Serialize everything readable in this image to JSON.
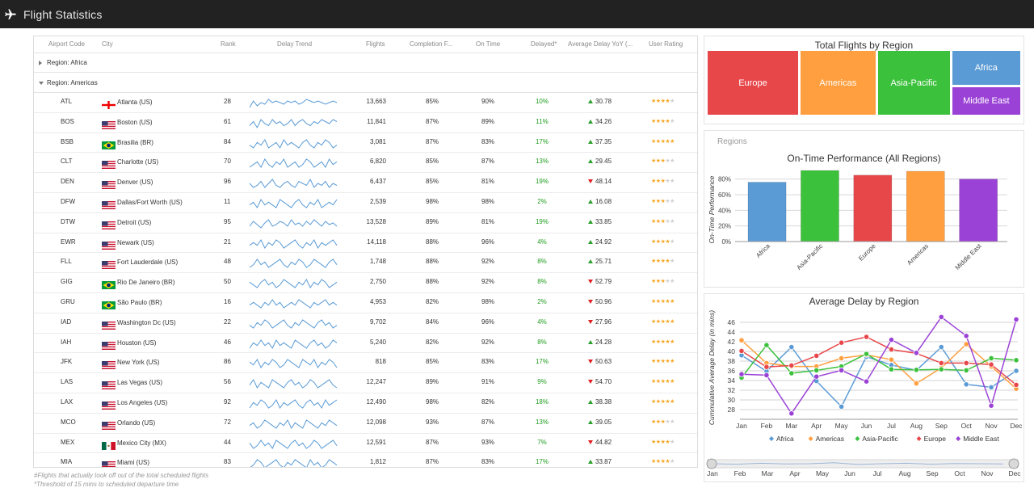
{
  "app": {
    "title": "Flight Statistics",
    "icon": "airplane-icon"
  },
  "grid": {
    "headers": {
      "airport_code": "Airport Code",
      "city": "City",
      "rank": "Rank",
      "delay_trend": "Delay Trend",
      "flights": "Flights",
      "completion": "Completion F...",
      "on_time": "On Time",
      "delayed": "Delayed*",
      "avg_delay_yoy": "Average Delay YoY (...",
      "user_rating": "User Rating"
    },
    "groups": [
      {
        "label": "Region: Africa",
        "expanded": false
      },
      {
        "label": "Region: Americas",
        "expanded": true
      }
    ],
    "rows": [
      {
        "code": "ATL",
        "flag": "ge",
        "city": "Atlanta (US)",
        "rank": "28",
        "trend": [
          5,
          9,
          6,
          8,
          7,
          10,
          8,
          9,
          8,
          7,
          9,
          8,
          9,
          7,
          8,
          10,
          9,
          8,
          9,
          8,
          7,
          8,
          9,
          8
        ],
        "flights": "13,663",
        "completion": "85%",
        "on_time": "90%",
        "delayed": "10%",
        "yoy_dir": "up",
        "yoy": "30.78",
        "rating": 4
      },
      {
        "code": "BOS",
        "flag": "us",
        "city": "Boston (US)",
        "rank": "61",
        "trend": [
          6,
          8,
          5,
          9,
          7,
          6,
          9,
          7,
          8,
          6,
          7,
          9,
          6,
          8,
          9,
          7,
          6,
          8,
          7,
          9,
          8,
          7,
          9,
          8
        ],
        "flights": "11,841",
        "completion": "87%",
        "on_time": "89%",
        "delayed": "11%",
        "yoy_dir": "up",
        "yoy": "34.26",
        "rating": 4
      },
      {
        "code": "BSB",
        "flag": "br",
        "city": "Brasilia (BR)",
        "rank": "84",
        "trend": [
          7,
          6,
          8,
          7,
          9,
          6,
          7,
          8,
          6,
          9,
          7,
          8,
          7,
          6,
          8,
          9,
          7,
          6,
          8,
          7,
          9,
          8,
          6,
          7
        ],
        "flights": "3,081",
        "completion": "87%",
        "on_time": "83%",
        "delayed": "17%",
        "yoy_dir": "up",
        "yoy": "37.35",
        "rating": 5
      },
      {
        "code": "CLT",
        "flag": "us",
        "city": "Charlotte (US)",
        "rank": "70",
        "trend": [
          6,
          7,
          8,
          6,
          9,
          7,
          6,
          8,
          7,
          9,
          6,
          7,
          8,
          6,
          7,
          9,
          8,
          6,
          7,
          8,
          6,
          9,
          7,
          8
        ],
        "flights": "6,820",
        "completion": "85%",
        "on_time": "87%",
        "delayed": "13%",
        "yoy_dir": "up",
        "yoy": "29.45",
        "rating": 3
      },
      {
        "code": "DEN",
        "flag": "us",
        "city": "Denver (US)",
        "rank": "96",
        "trend": [
          8,
          6,
          7,
          9,
          6,
          8,
          10,
          7,
          6,
          8,
          9,
          7,
          6,
          9,
          8,
          7,
          10,
          6,
          8,
          7,
          9,
          6,
          8,
          7
        ],
        "flights": "6,437",
        "completion": "85%",
        "on_time": "81%",
        "delayed": "19%",
        "yoy_dir": "down",
        "yoy": "48.14",
        "rating": 3
      },
      {
        "code": "DFW",
        "flag": "us",
        "city": "Dallas/Fort Worth (US)",
        "rank": "11",
        "trend": [
          7,
          8,
          6,
          9,
          7,
          8,
          7,
          6,
          9,
          8,
          7,
          6,
          8,
          9,
          7,
          6,
          8,
          7,
          9,
          6,
          7,
          8,
          7,
          9
        ],
        "flights": "2,539",
        "completion": "98%",
        "on_time": "98%",
        "delayed": "2%",
        "yoy_dir": "up",
        "yoy": "16.08",
        "rating": 3
      },
      {
        "code": "DTW",
        "flag": "us",
        "city": "Detroit (US)",
        "rank": "95",
        "trend": [
          6,
          9,
          7,
          5,
          8,
          10,
          6,
          7,
          9,
          8,
          6,
          10,
          7,
          8,
          6,
          9,
          7,
          10,
          8,
          6,
          9,
          7,
          8,
          6
        ],
        "flights": "13,528",
        "completion": "89%",
        "on_time": "81%",
        "delayed": "19%",
        "yoy_dir": "up",
        "yoy": "33.85",
        "rating": 3
      },
      {
        "code": "EWR",
        "flag": "us",
        "city": "Newark (US)",
        "rank": "21",
        "trend": [
          7,
          8,
          7,
          9,
          6,
          8,
          7,
          9,
          8,
          6,
          7,
          8,
          9,
          7,
          6,
          8,
          7,
          9,
          6,
          8,
          7,
          8,
          9,
          7
        ],
        "flights": "14,118",
        "completion": "88%",
        "on_time": "96%",
        "delayed": "4%",
        "yoy_dir": "up",
        "yoy": "24.92",
        "rating": 4
      },
      {
        "code": "FLL",
        "flag": "us",
        "city": "Fort Lauderdale (US)",
        "rank": "48",
        "trend": [
          6,
          7,
          9,
          7,
          8,
          6,
          7,
          8,
          9,
          7,
          6,
          8,
          7,
          9,
          8,
          6,
          7,
          9,
          8,
          7,
          6,
          8,
          9,
          7
        ],
        "flights": "1,748",
        "completion": "88%",
        "on_time": "92%",
        "delayed": "8%",
        "yoy_dir": "up",
        "yoy": "25.71",
        "rating": 4
      },
      {
        "code": "GIG",
        "flag": "br",
        "city": "Rio De Janeiro (BR)",
        "rank": "50",
        "trend": [
          8,
          7,
          6,
          8,
          9,
          7,
          8,
          6,
          7,
          9,
          8,
          7,
          6,
          8,
          7,
          9,
          6,
          8,
          7,
          9,
          8,
          6,
          7,
          8
        ],
        "flights": "2,750",
        "completion": "88%",
        "on_time": "92%",
        "delayed": "8%",
        "yoy_dir": "down",
        "yoy": "52.79",
        "rating": 3
      },
      {
        "code": "GRU",
        "flag": "br",
        "city": "São Paulo (BR)",
        "rank": "16",
        "trend": [
          7,
          8,
          7,
          6,
          8,
          7,
          9,
          7,
          8,
          6,
          7,
          8,
          7,
          9,
          8,
          7,
          6,
          8,
          7,
          8,
          9,
          7,
          8,
          7
        ],
        "flights": "4,953",
        "completion": "82%",
        "on_time": "98%",
        "delayed": "2%",
        "yoy_dir": "down",
        "yoy": "50.96",
        "rating": 5
      },
      {
        "code": "IAD",
        "flag": "us",
        "city": "Washington Dc (US)",
        "rank": "22",
        "trend": [
          7,
          6,
          8,
          7,
          9,
          8,
          6,
          7,
          8,
          9,
          7,
          6,
          8,
          7,
          9,
          8,
          7,
          6,
          8,
          9,
          7,
          8,
          6,
          7
        ],
        "flights": "9,702",
        "completion": "84%",
        "on_time": "96%",
        "delayed": "4%",
        "yoy_dir": "down",
        "yoy": "27.96",
        "rating": 5
      },
      {
        "code": "IAH",
        "flag": "us",
        "city": "Houston (US)",
        "rank": "46",
        "trend": [
          6,
          8,
          7,
          9,
          7,
          8,
          6,
          9,
          7,
          8,
          7,
          6,
          9,
          8,
          7,
          6,
          8,
          9,
          7,
          8,
          6,
          7,
          9,
          8
        ],
        "flights": "5,240",
        "completion": "82%",
        "on_time": "92%",
        "delayed": "8%",
        "yoy_dir": "up",
        "yoy": "24.28",
        "rating": 5
      },
      {
        "code": "JFK",
        "flag": "us",
        "city": "New York (US)",
        "rank": "86",
        "trend": [
          8,
          7,
          9,
          6,
          8,
          7,
          9,
          8,
          6,
          7,
          9,
          8,
          7,
          6,
          9,
          8,
          7,
          9,
          6,
          8,
          7,
          9,
          8,
          6
        ],
        "flights": "818",
        "completion": "85%",
        "on_time": "83%",
        "delayed": "17%",
        "yoy_dir": "down",
        "yoy": "50.63",
        "rating": 5
      },
      {
        "code": "LAS",
        "flag": "us",
        "city": "Las Vegas (US)",
        "rank": "56",
        "trend": [
          7,
          9,
          6,
          8,
          7,
          6,
          9,
          8,
          7,
          6,
          8,
          9,
          7,
          8,
          6,
          7,
          9,
          8,
          6,
          7,
          8,
          9,
          7,
          6
        ],
        "flights": "12,247",
        "completion": "89%",
        "on_time": "91%",
        "delayed": "9%",
        "yoy_dir": "down",
        "yoy": "54.70",
        "rating": 5
      },
      {
        "code": "LAX",
        "flag": "us",
        "city": "Los Angeles (US)",
        "rank": "92",
        "trend": [
          6,
          8,
          7,
          9,
          8,
          6,
          7,
          9,
          6,
          8,
          7,
          8,
          9,
          7,
          6,
          8,
          9,
          7,
          8,
          6,
          9,
          7,
          8,
          9
        ],
        "flights": "12,490",
        "completion": "98%",
        "on_time": "82%",
        "delayed": "18%",
        "yoy_dir": "up",
        "yoy": "38.38",
        "rating": 5
      },
      {
        "code": "MCO",
        "flag": "us",
        "city": "Orlando (US)",
        "rank": "72",
        "trend": [
          7,
          8,
          6,
          7,
          9,
          8,
          7,
          6,
          8,
          7,
          9,
          6,
          8,
          7,
          6,
          9,
          8,
          7,
          6,
          8,
          7,
          9,
          8,
          7
        ],
        "flights": "12,098",
        "completion": "93%",
        "on_time": "87%",
        "delayed": "13%",
        "yoy_dir": "up",
        "yoy": "39.05",
        "rating": 3
      },
      {
        "code": "MEX",
        "flag": "mx",
        "city": "Mexico City (MX)",
        "rank": "44",
        "trend": [
          8,
          6,
          7,
          9,
          7,
          8,
          6,
          9,
          8,
          7,
          6,
          8,
          9,
          7,
          8,
          6,
          7,
          9,
          8,
          6,
          7,
          8,
          9,
          7
        ],
        "flights": "12,591",
        "completion": "87%",
        "on_time": "93%",
        "delayed": "7%",
        "yoy_dir": "down",
        "yoy": "44.82",
        "rating": 4
      },
      {
        "code": "MIA",
        "flag": "us",
        "city": "Miami (US)",
        "rank": "83",
        "trend": [
          6,
          7,
          9,
          8,
          6,
          7,
          8,
          9,
          7,
          6,
          8,
          7,
          9,
          8,
          7,
          6,
          9,
          7,
          8,
          6,
          7,
          9,
          8,
          7
        ],
        "flights": "1,812",
        "completion": "87%",
        "on_time": "83%",
        "delayed": "17%",
        "yoy_dir": "up",
        "yoy": "33.87",
        "rating": 4
      }
    ]
  },
  "footnotes": {
    "completion": "#Flights that actually took off out of the total scheduled flights",
    "delayed": "*Threshold of 15 mins to scheduled departure time"
  },
  "colors": {
    "africa": "#5b9bd5",
    "americas": "#ff9f3f",
    "asia_pacific": "#3cc13c",
    "europe": "#e8474a",
    "middle_east": "#9b42d6",
    "sparkline": "#5b9bd5",
    "delayed_text": "#1f9d1f",
    "up_arrow": "#2ca02c",
    "down_arrow": "#e02020",
    "star": "#f5a623",
    "topbar": "#222222"
  },
  "chart_data": [
    {
      "type": "treemap",
      "title": "Total Flights by Region",
      "categories": [
        "Europe",
        "Americas",
        "Asia-Pacific",
        "Africa",
        "Middle East"
      ],
      "values": [
        30,
        25,
        24,
        12,
        10
      ]
    },
    {
      "type": "bar",
      "panel_label": "Regions",
      "title": "On-Time Performance (All Regions)",
      "ylabel": "On-Time Performance",
      "categories": [
        "Africa",
        "Asia-Pacific",
        "Europe",
        "Americas",
        "Middle East"
      ],
      "values": [
        0.76,
        0.91,
        0.85,
        0.9,
        0.8
      ],
      "ylim": [
        0,
        0.9
      ],
      "yticks": [
        "0%",
        "20%",
        "40%",
        "60%",
        "80%"
      ],
      "grid": true
    },
    {
      "type": "line",
      "title": "Average Delay by Region",
      "ylabel": "Cummulative Average Delay (in mins)",
      "categories": [
        "Jan",
        "Feb",
        "Mar",
        "Apr",
        "May",
        "Jun",
        "Jul",
        "Aug",
        "Sep",
        "Oct",
        "Nov",
        "Dec"
      ],
      "ylim": [
        26,
        48
      ],
      "yticks": [
        "28",
        "30",
        "32",
        "34",
        "36",
        "38",
        "40",
        "42",
        "44",
        "46"
      ],
      "legend": "bottom",
      "series": [
        {
          "name": "Africa",
          "values": [
            39.2,
            35.9,
            40.9,
            33.9,
            28.6,
            38.9,
            37.2,
            36.1,
            40.9,
            33.2,
            32.6,
            36.0
          ]
        },
        {
          "name": "Americas",
          "values": [
            42.3,
            37.6,
            36.9,
            36.9,
            38.6,
            39.3,
            38.3,
            33.4,
            36.6,
            41.5,
            36.9,
            32.3
          ]
        },
        {
          "name": "Asia-Pacific",
          "values": [
            34.6,
            41.3,
            35.5,
            36.1,
            36.9,
            39.5,
            36.3,
            36.2,
            36.3,
            36.1,
            38.6,
            38.2
          ]
        },
        {
          "name": "Europe",
          "values": [
            40.1,
            36.8,
            37.1,
            39.1,
            41.8,
            43.0,
            40.4,
            39.6,
            37.6,
            37.6,
            37.3,
            33.1
          ]
        },
        {
          "name": "Middle East",
          "values": [
            35.3,
            35.1,
            27.2,
            34.8,
            36.1,
            33.8,
            42.4,
            39.7,
            47.1,
            43.2,
            28.8,
            46.6
          ]
        }
      ],
      "range_slider": [
        "Jan",
        "Feb",
        "Mar",
        "Apr",
        "May",
        "Jun",
        "Jul",
        "Aug",
        "Sep",
        "Oct",
        "Nov",
        "Dec"
      ]
    }
  ]
}
